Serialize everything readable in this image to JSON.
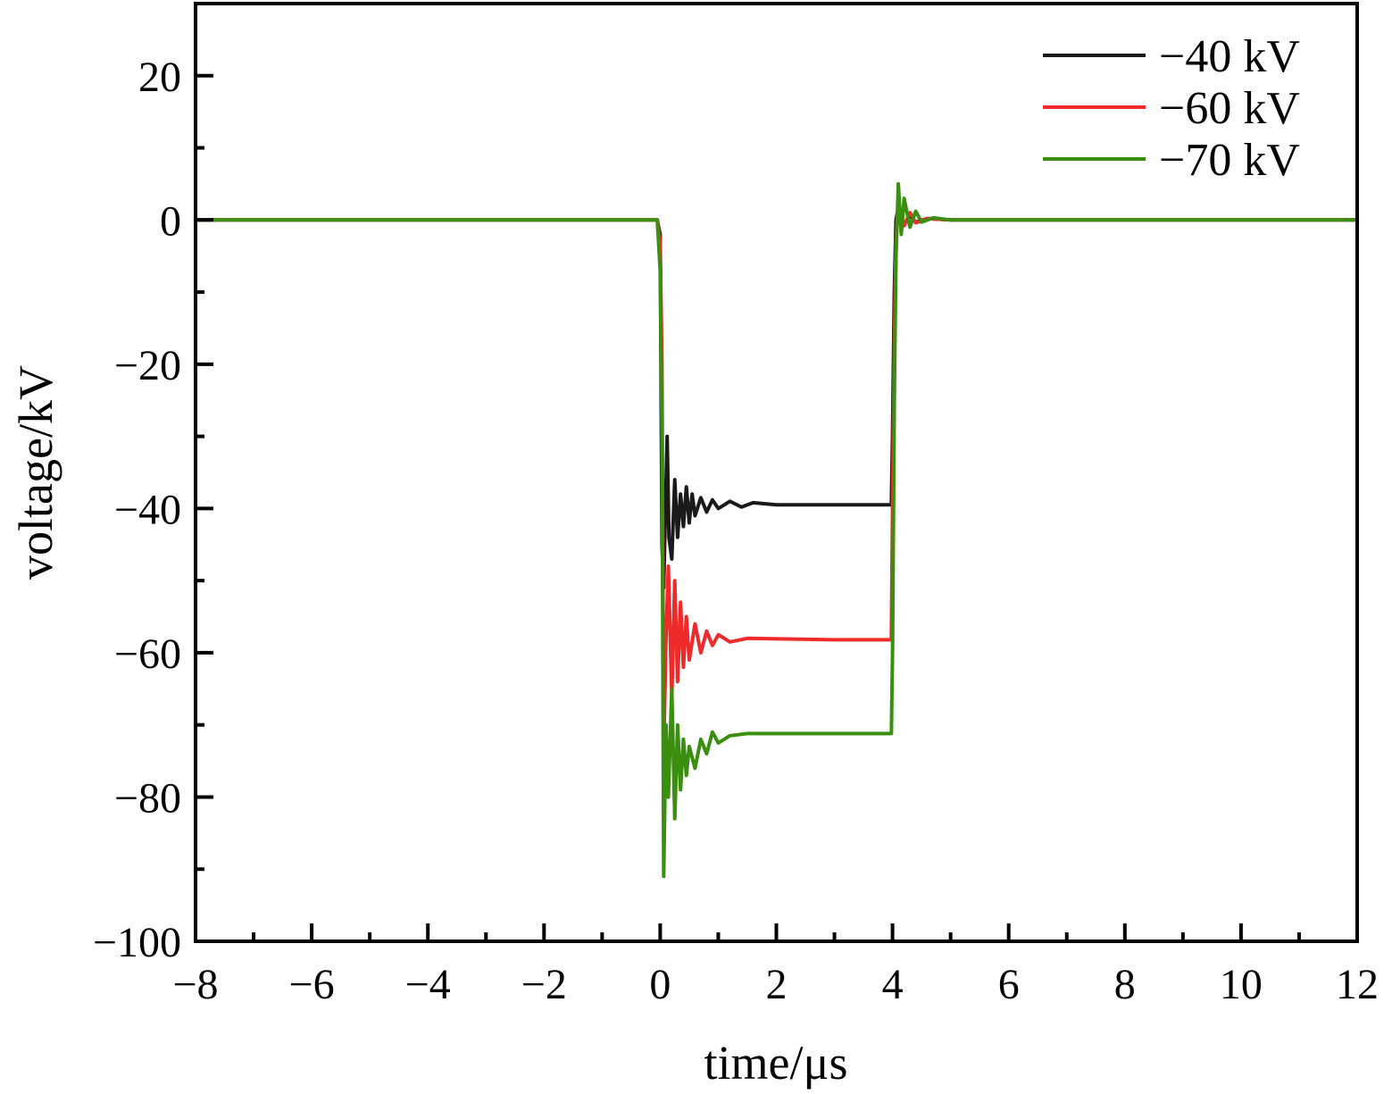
{
  "chart_data": {
    "type": "line",
    "title": "",
    "xlabel": "time/μs",
    "ylabel": "voltage/kV",
    "xlim": [
      -8,
      12
    ],
    "ylim": [
      -100,
      30
    ],
    "x_ticks": [
      -8,
      -6,
      -4,
      -2,
      0,
      2,
      4,
      6,
      8,
      10,
      12
    ],
    "x_tick_labels": [
      "−8",
      "−6",
      "−4",
      "−2",
      "0",
      "2",
      "4",
      "6",
      "8",
      "10",
      "12"
    ],
    "y_ticks": [
      20,
      0,
      -20,
      -40,
      -60,
      -80,
      -100
    ],
    "y_tick_labels": [
      "20",
      "0",
      "−20",
      "−40",
      "−60",
      "−80",
      "−100"
    ],
    "x_minor_step": 1,
    "y_minor_step": 10,
    "legend_position": "top-right",
    "grid": false,
    "series": [
      {
        "name": "−40 kV",
        "color": "#1a1a1a",
        "points": [
          [
            -8,
            0
          ],
          [
            -0.05,
            0
          ],
          [
            0,
            -2
          ],
          [
            0.03,
            -45
          ],
          [
            0.06,
            -51
          ],
          [
            0.09,
            -40
          ],
          [
            0.12,
            -30
          ],
          [
            0.15,
            -44
          ],
          [
            0.2,
            -47
          ],
          [
            0.25,
            -36
          ],
          [
            0.3,
            -44
          ],
          [
            0.35,
            -38
          ],
          [
            0.4,
            -42.5
          ],
          [
            0.45,
            -37
          ],
          [
            0.5,
            -42
          ],
          [
            0.55,
            -38
          ],
          [
            0.6,
            -41
          ],
          [
            0.7,
            -38.5
          ],
          [
            0.8,
            -40.5
          ],
          [
            0.9,
            -38.8
          ],
          [
            1.0,
            -40
          ],
          [
            1.2,
            -39
          ],
          [
            1.4,
            -39.8
          ],
          [
            1.6,
            -39.2
          ],
          [
            2.0,
            -39.5
          ],
          [
            3.0,
            -39.5
          ],
          [
            3.98,
            -39.5
          ],
          [
            4.0,
            -30
          ],
          [
            4.03,
            -10
          ],
          [
            4.06,
            0
          ],
          [
            4.1,
            1.8
          ],
          [
            4.2,
            -0.6
          ],
          [
            4.3,
            0.6
          ],
          [
            4.4,
            -0.3
          ],
          [
            4.6,
            0.2
          ],
          [
            5.0,
            0
          ],
          [
            12,
            0
          ]
        ]
      },
      {
        "name": "−60 kV",
        "color": "#ee2a2a",
        "points": [
          [
            -8,
            0
          ],
          [
            -0.05,
            0
          ],
          [
            0,
            -3
          ],
          [
            0.03,
            -20
          ],
          [
            0.06,
            -74
          ],
          [
            0.1,
            -58
          ],
          [
            0.14,
            -48
          ],
          [
            0.2,
            -66
          ],
          [
            0.25,
            -50
          ],
          [
            0.3,
            -64
          ],
          [
            0.35,
            -53
          ],
          [
            0.4,
            -62
          ],
          [
            0.45,
            -55
          ],
          [
            0.5,
            -61
          ],
          [
            0.6,
            -56
          ],
          [
            0.7,
            -60
          ],
          [
            0.8,
            -57
          ],
          [
            0.9,
            -59
          ],
          [
            1.0,
            -57.5
          ],
          [
            1.2,
            -58.5
          ],
          [
            1.5,
            -58
          ],
          [
            3.0,
            -58.2
          ],
          [
            3.98,
            -58.2
          ],
          [
            4.0,
            -40
          ],
          [
            4.03,
            -18
          ],
          [
            4.06,
            -3
          ],
          [
            4.1,
            2.5
          ],
          [
            4.2,
            -0.8
          ],
          [
            4.3,
            1
          ],
          [
            4.4,
            -0.4
          ],
          [
            4.6,
            0.2
          ],
          [
            5.0,
            0
          ],
          [
            12,
            0
          ]
        ]
      },
      {
        "name": "−70 kV",
        "color": "#3a8f10",
        "points": [
          [
            -8,
            0
          ],
          [
            -0.05,
            0
          ],
          [
            0,
            -7
          ],
          [
            0.03,
            -30
          ],
          [
            0.06,
            -91
          ],
          [
            0.1,
            -70
          ],
          [
            0.14,
            -80
          ],
          [
            0.2,
            -65
          ],
          [
            0.25,
            -83
          ],
          [
            0.3,
            -70
          ],
          [
            0.35,
            -79
          ],
          [
            0.4,
            -72
          ],
          [
            0.45,
            -77
          ],
          [
            0.5,
            -73
          ],
          [
            0.6,
            -76
          ],
          [
            0.7,
            -72
          ],
          [
            0.8,
            -74
          ],
          [
            0.9,
            -71
          ],
          [
            1.0,
            -72.5
          ],
          [
            1.2,
            -71.5
          ],
          [
            1.5,
            -71.2
          ],
          [
            3.0,
            -71.2
          ],
          [
            3.98,
            -71.2
          ],
          [
            4.0,
            -60
          ],
          [
            4.03,
            -25
          ],
          [
            4.06,
            -5
          ],
          [
            4.1,
            5
          ],
          [
            4.15,
            -2
          ],
          [
            4.2,
            3
          ],
          [
            4.3,
            -1
          ],
          [
            4.4,
            1.2
          ],
          [
            4.5,
            -0.3
          ],
          [
            4.7,
            0.3
          ],
          [
            5.0,
            0
          ],
          [
            12,
            0
          ]
        ]
      }
    ]
  }
}
